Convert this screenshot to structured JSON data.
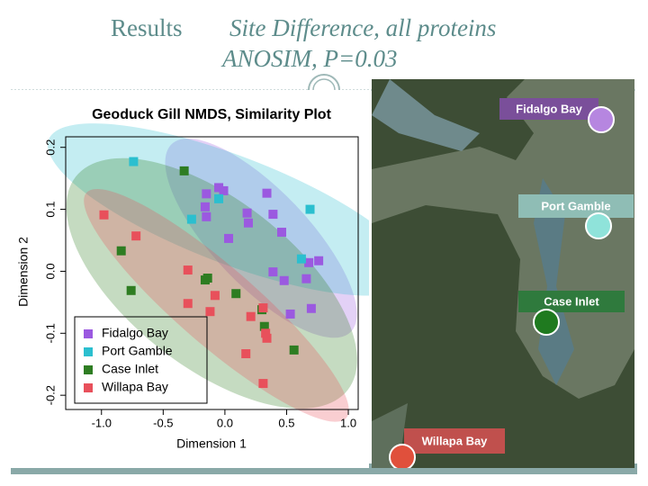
{
  "slide": {
    "title": "Results",
    "subtitle": "Site Difference, all proteins",
    "subtitle2": "ANOSIM, P=0.03"
  },
  "map": {
    "labels": [
      "Fidalgo Bay",
      "Port Gamble",
      "Case Inlet",
      "Willapa Bay"
    ]
  },
  "chart_data": {
    "type": "scatter",
    "title": "Geoduck Gill NMDS, Similarity Plot",
    "x_label": "Dimension 1",
    "y_label": "Dimension 2",
    "xlim": [
      -1.29,
      1.08
    ],
    "ylim": [
      -0.223,
      0.217
    ],
    "xticks": [
      {
        "value": -1,
        "label": "-1.0"
      },
      {
        "value": -0.5,
        "label": "-0.5"
      },
      {
        "value": 0,
        "label": "0.0"
      },
      {
        "value": 0.5,
        "label": "0.5"
      },
      {
        "value": 1,
        "label": "1.0"
      }
    ],
    "yticks": [
      {
        "value": -0.2,
        "label": "-0.2"
      },
      {
        "value": -0.1,
        "label": "-0.1"
      },
      {
        "value": 0,
        "label": "0.0"
      },
      {
        "value": 0.1,
        "label": "0.1"
      },
      {
        "value": 0.2,
        "label": "0.2"
      }
    ],
    "legend": "bottom-left",
    "series": [
      {
        "name": "Fidalgo Bay",
        "color": "#9b59e0",
        "x": [
          -0.05,
          -0.01,
          -0.15,
          0.34,
          0.18,
          0.39,
          -0.16,
          -0.15,
          0.19,
          0.03,
          0.46,
          0.68,
          0.76,
          0.39,
          0.48,
          0.66,
          0.7,
          0.53
        ],
        "values": [
          0.135,
          0.13,
          0.125,
          0.126,
          0.094,
          0.092,
          0.104,
          0.088,
          0.078,
          0.053,
          0.063,
          0.014,
          0.017,
          -0.001,
          -0.015,
          -0.012,
          -0.06,
          -0.069
        ]
      },
      {
        "name": "Port Gamble",
        "color": "#2bbfcf",
        "x": [
          -0.74,
          -0.27,
          -0.05,
          0.69,
          0.62
        ],
        "values": [
          0.177,
          0.084,
          0.117,
          0.1,
          0.02
        ]
      },
      {
        "name": "Case Inlet",
        "color": "#2e7d22",
        "x": [
          -0.33,
          -0.84,
          -0.76,
          -0.16,
          -0.14,
          0.09,
          0.3,
          0.32,
          0.56
        ],
        "values": [
          0.162,
          0.033,
          -0.031,
          -0.014,
          -0.011,
          -0.036,
          -0.062,
          -0.089,
          -0.127
        ]
      },
      {
        "name": "Willapa Bay",
        "color": "#e8505b",
        "x": [
          -0.98,
          -0.72,
          -0.3,
          -0.08,
          -0.3,
          -0.12,
          0.21,
          0.31,
          0.33,
          0.34,
          0.17,
          0.31
        ],
        "values": [
          0.091,
          0.057,
          0.002,
          -0.039,
          -0.052,
          -0.065,
          -0.073,
          -0.059,
          -0.1,
          -0.108,
          -0.133,
          -0.181
        ]
      }
    ]
  }
}
